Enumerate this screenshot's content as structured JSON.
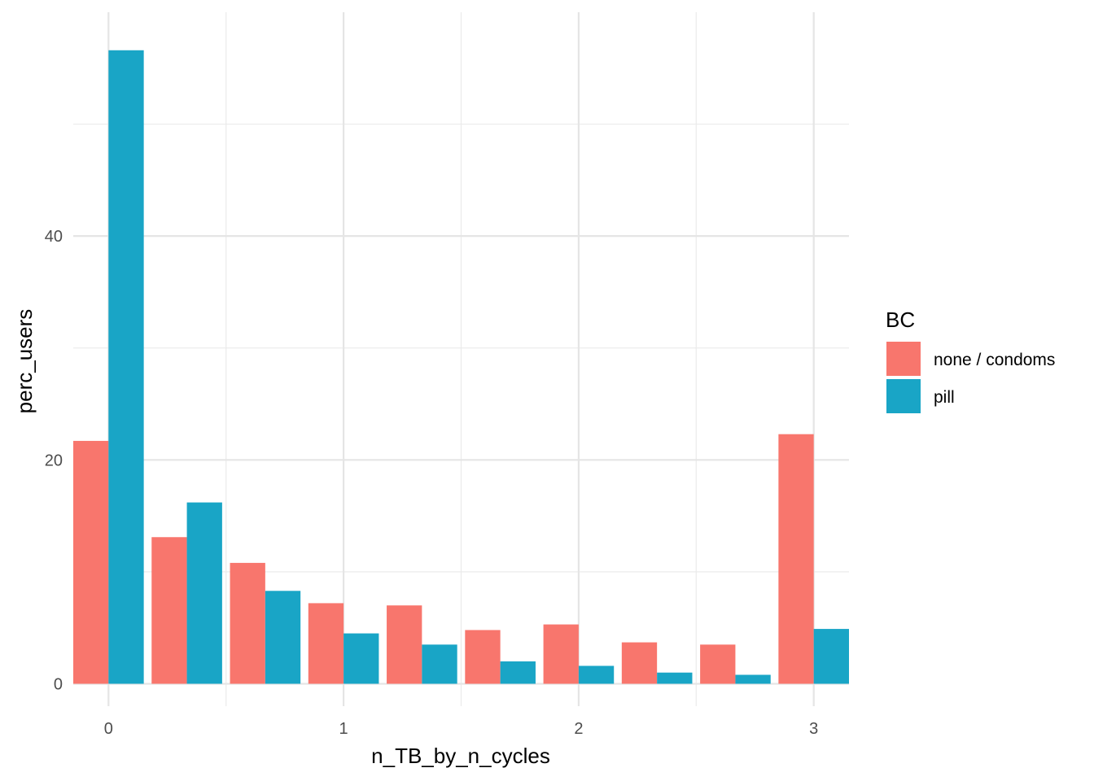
{
  "chart_data": {
    "type": "bar",
    "title": "",
    "xlabel": "n_TB_by_n_cycles",
    "ylabel": "perc_users",
    "xlim": [
      -0.15,
      3.15
    ],
    "ylim": [
      -2,
      60
    ],
    "x_ticks": [
      0,
      1,
      2,
      3
    ],
    "x_tick_labels": [
      "0",
      "1",
      "2",
      "3"
    ],
    "y_ticks": [
      0,
      20,
      40
    ],
    "y_tick_labels": [
      "0",
      "20",
      "40"
    ],
    "grid": true,
    "bin_width": 0.3333,
    "x": [
      0,
      0.3333,
      0.6667,
      1,
      1.3333,
      1.6667,
      2,
      2.3333,
      2.6667,
      3
    ],
    "series": [
      {
        "name": "none / condoms",
        "color": "#F8766D",
        "values": [
          21.7,
          13.1,
          10.8,
          7.2,
          7.0,
          4.8,
          5.3,
          3.7,
          3.5,
          22.3
        ]
      },
      {
        "name": "pill",
        "color": "#19A5C6",
        "values": [
          56.6,
          16.2,
          8.3,
          4.5,
          3.5,
          2.0,
          1.6,
          1.0,
          0.8,
          4.9
        ]
      }
    ],
    "legend": {
      "title": "BC",
      "position": "right"
    }
  }
}
